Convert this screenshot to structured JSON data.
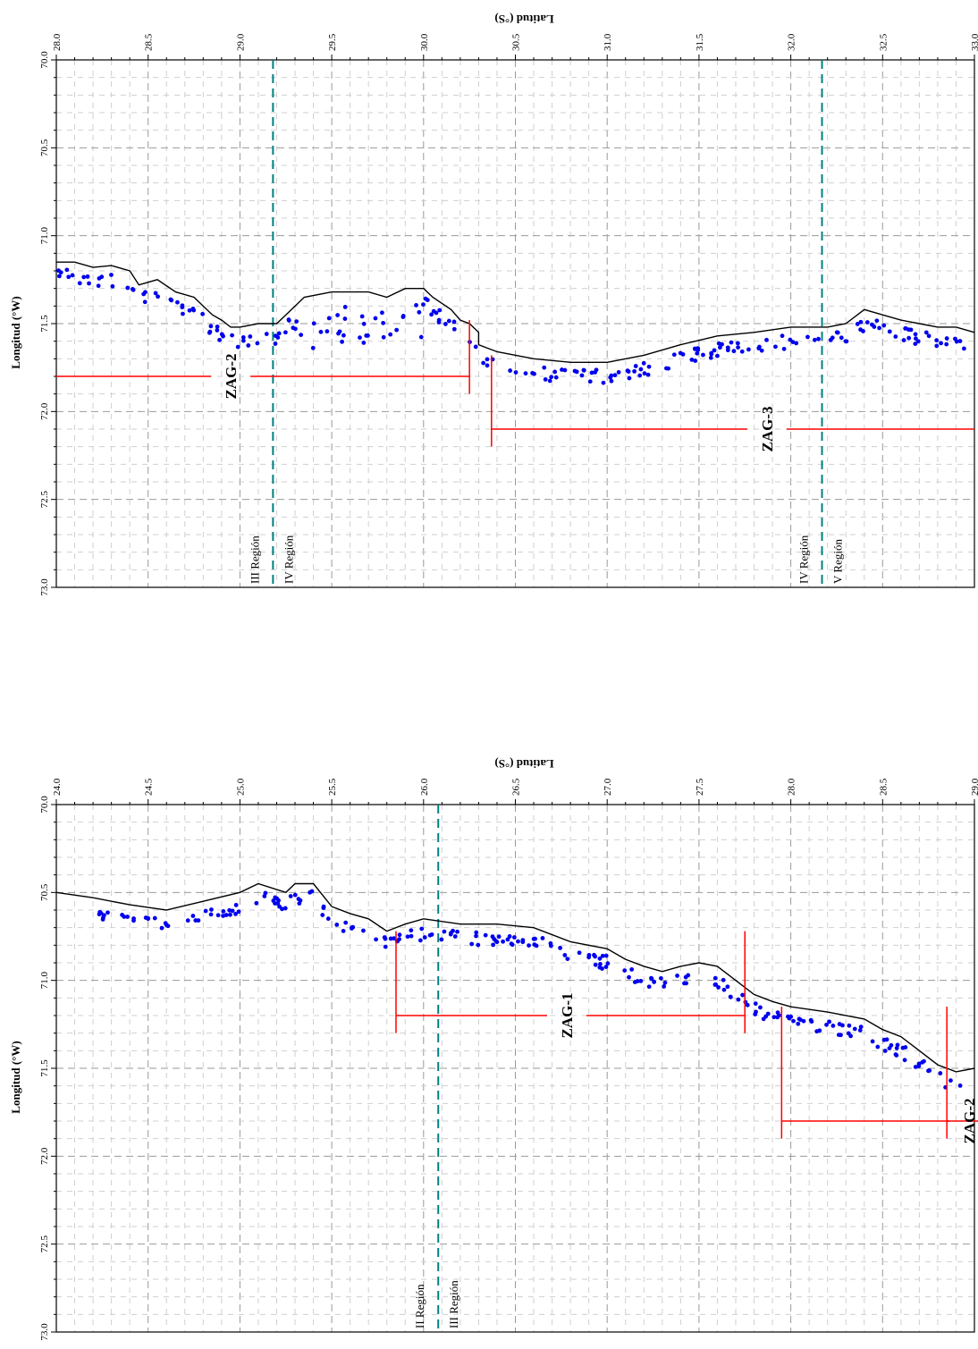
{
  "colors": {
    "coast": "#000000",
    "points": "#0000ee",
    "zones": "#ff0000",
    "boundary": "#008080",
    "grid_major": "#9a9a9a",
    "grid_minor": "#cfcfcf"
  },
  "chart_data": [
    {
      "type": "scatter",
      "title": "",
      "xlabel": "Latitud (°S)",
      "ylabel": "Longitud (°W)",
      "xlim": [
        28.0,
        33.0
      ],
      "ylim": [
        70.0,
        73.0
      ],
      "x_ticks": [
        "28.0",
        "28.5",
        "29.0",
        "29.5",
        "30.0",
        "30.5",
        "31.0",
        "31.5",
        "32.0",
        "32.5",
        "33.0"
      ],
      "y_ticks": [
        "70.0",
        "70.5",
        "71.0",
        "71.5",
        "72.0",
        "72.5",
        "73.0"
      ],
      "grid": true,
      "coastline": [
        [
          28.0,
          71.15
        ],
        [
          28.1,
          71.15
        ],
        [
          28.2,
          71.18
        ],
        [
          28.3,
          71.17
        ],
        [
          28.4,
          71.2
        ],
        [
          28.45,
          71.28
        ],
        [
          28.55,
          71.25
        ],
        [
          28.65,
          71.32
        ],
        [
          28.75,
          71.35
        ],
        [
          28.85,
          71.45
        ],
        [
          28.9,
          71.48
        ],
        [
          28.95,
          71.52
        ],
        [
          29.0,
          71.52
        ],
        [
          29.1,
          71.5
        ],
        [
          29.2,
          71.5
        ],
        [
          29.25,
          71.45
        ],
        [
          29.35,
          71.35
        ],
        [
          29.5,
          71.32
        ],
        [
          29.6,
          71.32
        ],
        [
          29.7,
          71.32
        ],
        [
          29.8,
          71.35
        ],
        [
          29.9,
          71.3
        ],
        [
          29.95,
          71.3
        ],
        [
          30.0,
          71.3
        ],
        [
          30.05,
          71.35
        ],
        [
          30.15,
          71.42
        ],
        [
          30.2,
          71.48
        ],
        [
          30.25,
          71.5
        ],
        [
          30.3,
          71.55
        ],
        [
          30.3,
          71.62
        ],
        [
          30.4,
          71.66
        ],
        [
          30.6,
          71.7
        ],
        [
          30.8,
          71.72
        ],
        [
          31.0,
          71.72
        ],
        [
          31.2,
          71.68
        ],
        [
          31.4,
          71.62
        ],
        [
          31.6,
          71.57
        ],
        [
          31.8,
          71.55
        ],
        [
          32.0,
          71.52
        ],
        [
          32.2,
          71.52
        ],
        [
          32.3,
          71.5
        ],
        [
          32.4,
          71.42
        ],
        [
          32.5,
          71.45
        ],
        [
          32.6,
          71.48
        ],
        [
          32.7,
          71.5
        ],
        [
          32.8,
          71.52
        ],
        [
          32.9,
          71.52
        ],
        [
          33.0,
          71.55
        ]
      ],
      "zones": [
        {
          "label": "ZAG-2",
          "x": [
            28.0,
            30.25
          ],
          "y": 71.8,
          "label_x": 28.95,
          "bracket": [
            71.48,
            71.9
          ]
        },
        {
          "label": "ZAG-3",
          "x": [
            30.37,
            33.0
          ],
          "y": 72.1,
          "label_x": 31.87,
          "bracket": [
            71.68,
            72.2
          ]
        }
      ],
      "boundaries": [
        {
          "x": 29.18,
          "left": "III Región",
          "right": "IV Región"
        },
        {
          "x": 32.17,
          "left": "IV Región",
          "right": "V Región"
        }
      ]
    },
    {
      "type": "scatter",
      "title": "",
      "xlabel": "Latitud (°S)",
      "ylabel": "Longitud (°W)",
      "xlim": [
        24.0,
        29.0
      ],
      "ylim": [
        70.0,
        73.0
      ],
      "x_ticks": [
        "24.0",
        "24.5",
        "25.0",
        "25.5",
        "26.0",
        "26.5",
        "27.0",
        "27.5",
        "28.0",
        "28.5",
        "29.0"
      ],
      "y_ticks": [
        "70.0",
        "70.5",
        "71.0",
        "71.5",
        "72.0",
        "72.5",
        "73.0"
      ],
      "grid": true,
      "coastline": [
        [
          24.0,
          70.5
        ],
        [
          24.2,
          70.53
        ],
        [
          24.4,
          70.57
        ],
        [
          24.6,
          70.6
        ],
        [
          24.8,
          70.55
        ],
        [
          25.0,
          70.5
        ],
        [
          25.1,
          70.45
        ],
        [
          25.25,
          70.5
        ],
        [
          25.3,
          70.45
        ],
        [
          25.4,
          70.45
        ],
        [
          25.5,
          70.58
        ],
        [
          25.6,
          70.62
        ],
        [
          25.7,
          70.65
        ],
        [
          25.8,
          70.72
        ],
        [
          25.9,
          70.68
        ],
        [
          26.0,
          70.65
        ],
        [
          26.2,
          70.68
        ],
        [
          26.4,
          70.68
        ],
        [
          26.6,
          70.7
        ],
        [
          26.8,
          70.78
        ],
        [
          27.0,
          70.82
        ],
        [
          27.1,
          70.88
        ],
        [
          27.2,
          70.92
        ],
        [
          27.3,
          70.95
        ],
        [
          27.4,
          70.92
        ],
        [
          27.5,
          70.9
        ],
        [
          27.6,
          70.92
        ],
        [
          27.7,
          71.0
        ],
        [
          27.8,
          71.08
        ],
        [
          27.9,
          71.12
        ],
        [
          28.0,
          71.15
        ],
        [
          28.2,
          71.18
        ],
        [
          28.4,
          71.22
        ],
        [
          28.5,
          71.28
        ],
        [
          28.6,
          71.32
        ],
        [
          28.7,
          71.4
        ],
        [
          28.8,
          71.48
        ],
        [
          28.9,
          71.52
        ],
        [
          29.0,
          71.5
        ]
      ],
      "zones": [
        {
          "label": "ZAG-1",
          "x": [
            25.85,
            27.75
          ],
          "y": 71.2,
          "label_x": 26.78,
          "bracket": [
            70.72,
            71.3
          ]
        },
        {
          "label": "ZAG-2",
          "x": [
            27.95,
            28.85
          ],
          "y": 71.8,
          "label_x": 28.97,
          "bracket": [
            71.15,
            71.9
          ]
        }
      ],
      "boundaries": [
        {
          "x": 26.08,
          "left": "II Región",
          "right": "III Región"
        }
      ]
    }
  ]
}
